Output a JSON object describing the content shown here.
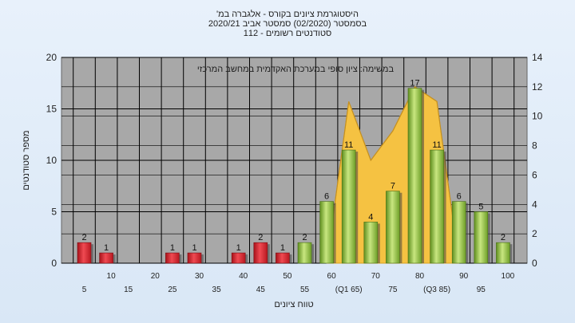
{
  "title_lines": [
    "'היסטוגרמת ציונים בקורס - אלגברה במ",
    "בסמסטר  (02/2020)  סמסטר אביב 2020/21",
    "סטודנטים רשומים - 112"
  ],
  "chart_data": {
    "type": "bar",
    "annotation": "במשימה: ציון סופי במערכת האקדמית במחשב המרכזי",
    "xlabel": "טווח ציונים",
    "ylabel": "מספר סטודנטים",
    "ylim": [
      0,
      20
    ],
    "y_ticks": [
      0,
      5,
      10,
      15,
      20
    ],
    "y2lim": [
      0,
      14
    ],
    "y2_ticks": [
      0,
      2,
      4,
      6,
      8,
      10,
      12,
      14
    ],
    "grid": true,
    "categories": [
      "5",
      "10",
      "15",
      "20",
      "25",
      "30",
      "35",
      "40",
      "45",
      "50",
      "55",
      "60",
      "65",
      "70",
      "75",
      "80",
      "85",
      "90",
      "95",
      "100"
    ],
    "tick_labels_row1": [
      "",
      "10",
      "",
      "20",
      "",
      "30",
      "",
      "40",
      "",
      "50",
      "",
      "60",
      "",
      "70",
      "",
      "80",
      "",
      "90",
      "",
      "100"
    ],
    "tick_labels_row2": [
      "5",
      "",
      "15",
      "",
      "25",
      "",
      "35",
      "",
      "45",
      "",
      "55",
      "",
      "(Q1 65)",
      "",
      "75",
      "",
      "(Q3 85)",
      "",
      "95",
      ""
    ],
    "values": [
      2,
      1,
      0,
      0,
      1,
      1,
      0,
      1,
      2,
      1,
      2,
      6,
      11,
      4,
      7,
      17,
      11,
      6,
      5,
      2
    ],
    "value_labels": [
      "2",
      "1",
      "",
      "",
      "1",
      "1",
      "",
      "1",
      "2",
      "1",
      "2",
      "6",
      "11",
      "4",
      "7",
      "17",
      "11",
      "6",
      "5",
      "2"
    ],
    "bar_groups": [
      "fail",
      "fail",
      "fail",
      "fail",
      "fail",
      "fail",
      "fail",
      "fail",
      "fail",
      "fail",
      "pass",
      "pass",
      "pass",
      "pass",
      "pass",
      "pass",
      "pass",
      "pass",
      "pass",
      "pass"
    ],
    "area_series": {
      "x_categories": [
        "60",
        "65",
        "70",
        "75",
        "80",
        "85",
        "90"
      ],
      "values": [
        0,
        11,
        7,
        9,
        12,
        11,
        0
      ]
    },
    "colors": {
      "fail_bar": "#d9232d",
      "pass_bar": "#8fc040",
      "area": "#f5c242",
      "plot_bg": "#a8a8a8",
      "grid": "#000000"
    }
  }
}
